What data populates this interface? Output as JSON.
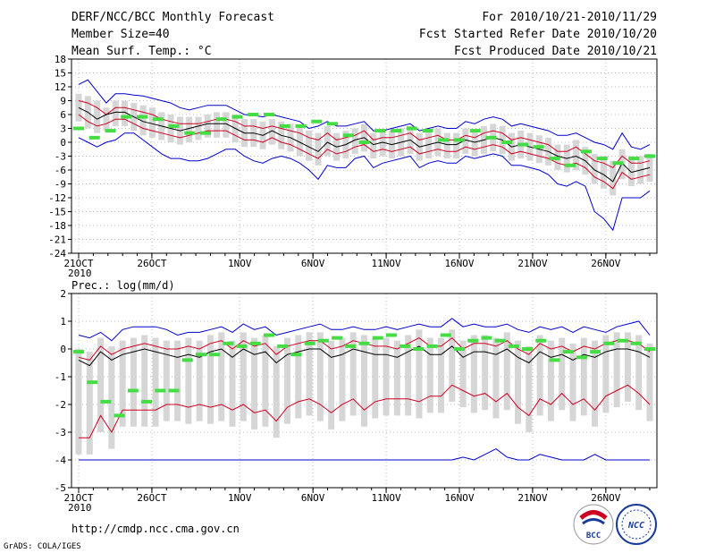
{
  "header": {
    "left": [
      "DERF/NCC/BCC Monthly Forecast",
      "Member Size=40",
      "Mean Surf. Temp.: °C"
    ],
    "right": [
      "For 2010/10/21-2010/11/29",
      "Fcst Started Refer Date 2010/10/20",
      "Fcst Produced Date 2010/10/21"
    ]
  },
  "footer": {
    "url": "http://cmdp.ncc.cma.gov.cn",
    "credit": "GrADS: COLA/IGES"
  },
  "logos": {
    "bcc_text": "BCC",
    "ncc_text": "NCC"
  },
  "colors": {
    "ensemble_mean": "#000000",
    "spread": "#cc0022",
    "extreme": "#0000cc",
    "observed": "#44dd44",
    "box": "#d6d6d6"
  },
  "chart_data": [
    {
      "type": "line",
      "title": "Mean Surf. Temp.: °C",
      "x_ticks": [
        "21OCT",
        "26OCT",
        "1NOV",
        "6NOV",
        "11NOV",
        "16NOV",
        "21NOV",
        "26NOV"
      ],
      "x_sub": "2010",
      "y_ticks": [
        "18",
        "15",
        "12",
        "9",
        "6",
        "3",
        "0",
        "-3",
        "-6",
        "-9",
        "-12",
        "-15",
        "-18",
        "-21",
        "-24"
      ],
      "ylim": [
        -24,
        18
      ],
      "days": 40,
      "series": [
        {
          "name": "max",
          "values": [
            12.5,
            13.5,
            11,
            8.5,
            10.5,
            10.5,
            10.2,
            10,
            9.5,
            9,
            8.5,
            7.5,
            7,
            7.5,
            8,
            8,
            8,
            7,
            6,
            5.8,
            5.5,
            6,
            5.5,
            5,
            4.5,
            3,
            3.5,
            4.5,
            3.5,
            3.5,
            4,
            4.5,
            2.5,
            2.5,
            3,
            3.5,
            4,
            2.5,
            3,
            3.5,
            3,
            3,
            4.5,
            4,
            5,
            5.5,
            5,
            3.5,
            4,
            3.5,
            3,
            2.5,
            1.5,
            1.5,
            2,
            1,
            0,
            -0.5,
            -1.5,
            2,
            -1,
            -1.5,
            -0.5
          ]
        },
        {
          "name": "upper",
          "values": [
            9,
            8.5,
            7.5,
            6,
            7.5,
            7.5,
            7,
            6.5,
            6,
            5,
            4.5,
            4,
            4,
            4,
            4.5,
            5,
            5,
            4.5,
            3.5,
            3.5,
            3,
            3.5,
            3,
            2.5,
            2,
            1,
            0.5,
            2,
            0.5,
            1,
            1.5,
            2.5,
            0.5,
            1,
            1,
            1.5,
            2,
            0.5,
            1,
            1.5,
            0.5,
            0.5,
            1.5,
            1,
            2,
            2.5,
            2,
            0.5,
            1,
            0.5,
            0,
            -0.5,
            -2,
            -2,
            -1,
            -2.5,
            -4,
            -4.5,
            -5.5,
            -3,
            -4.5,
            -4.5,
            -4
          ]
        },
        {
          "name": "mean",
          "values": [
            7.5,
            6.5,
            5,
            6,
            6.5,
            6.5,
            5.5,
            4.5,
            4,
            3.5,
            3,
            2.5,
            3,
            3.5,
            4,
            4,
            4,
            3,
            2,
            2,
            1.5,
            2.5,
            1.5,
            1,
            0,
            -1,
            -2,
            0,
            -1,
            -0.5,
            0.5,
            1,
            -0.5,
            0,
            -0.5,
            0,
            0.5,
            -1,
            -0.5,
            0,
            -0.5,
            -0.5,
            0.5,
            0,
            0.5,
            1,
            0.5,
            -1,
            -0.5,
            -1,
            -1.5,
            -2,
            -3,
            -3.5,
            -3,
            -4,
            -6,
            -7,
            -8.5,
            -4.5,
            -6.5,
            -6,
            -5.5
          ]
        },
        {
          "name": "lower",
          "values": [
            6,
            4.5,
            3.5,
            4,
            5,
            5,
            4,
            3,
            2.5,
            2,
            1.5,
            1,
            1.5,
            2,
            2.5,
            2.5,
            2.5,
            1.5,
            0.5,
            0.5,
            0,
            1,
            0,
            -0.5,
            -1.5,
            -2.5,
            -3.5,
            -1.5,
            -2.5,
            -2,
            -1,
            -0.5,
            -2,
            -1.5,
            -2,
            -1.5,
            -1,
            -2.5,
            -2,
            -1.5,
            -2,
            -2,
            -1,
            -1.5,
            -1,
            -0.5,
            -1,
            -2.5,
            -2,
            -2.5,
            -3,
            -3.5,
            -4.5,
            -5,
            -4.5,
            -5.5,
            -7.5,
            -8.5,
            -10,
            -6.5,
            -8,
            -7.5,
            -7
          ]
        },
        {
          "name": "min",
          "values": [
            1,
            0,
            -1,
            0,
            0.5,
            2,
            2,
            0.5,
            -1,
            -2.5,
            -3.5,
            -3.5,
            -4,
            -4,
            -3.5,
            -2.5,
            -1.5,
            -1.5,
            -3,
            -4,
            -4.5,
            -3.5,
            -3,
            -3.5,
            -4.5,
            -6,
            -8,
            -5,
            -5.5,
            -5.5,
            -3.5,
            -3,
            -5.5,
            -4.5,
            -4,
            -3.5,
            -3,
            -5.5,
            -4.5,
            -4,
            -4.5,
            -4.5,
            -3,
            -3.5,
            -3,
            -2.5,
            -3,
            -5,
            -5,
            -5.5,
            -6,
            -7,
            -9,
            -9.5,
            -8.5,
            -9.5,
            -15,
            -16.5,
            -19,
            -12,
            -12,
            -12,
            -10.5
          ]
        },
        {
          "name": "observed",
          "values": [
            3,
            1,
            2.5,
            5.5,
            5.5,
            5,
            3.5,
            2,
            2,
            5,
            5.5,
            6,
            6,
            3.5,
            3.5,
            4.5,
            4,
            1.5,
            0,
            2.5,
            2.5,
            3,
            2.5,
            0.5,
            0.5,
            2.5,
            1,
            0,
            -0.5,
            -1,
            -3.5,
            -5,
            -2,
            -3.5,
            -4.5,
            -3.5,
            -3
          ]
        }
      ]
    },
    {
      "type": "line",
      "title": "Prec.: log(mm/d)",
      "x_ticks": [
        "21OCT",
        "26OCT",
        "1NOV",
        "6NOV",
        "11NOV",
        "16NOV",
        "21NOV",
        "26NOV"
      ],
      "x_sub": "2010",
      "y_ticks": [
        "2",
        "1",
        "0",
        "-1",
        "-2",
        "-3",
        "-4",
        "-5"
      ],
      "ylim": [
        -5,
        2
      ],
      "days": 40,
      "series": [
        {
          "name": "max",
          "values": [
            0.5,
            0.4,
            0.6,
            0.3,
            0.7,
            0.8,
            0.8,
            0.8,
            0.7,
            0.5,
            0.6,
            0.6,
            0.7,
            0.8,
            0.6,
            0.9,
            0.7,
            0.8,
            0.5,
            0.6,
            0.7,
            0.8,
            0.9,
            0.7,
            0.7,
            0.8,
            0.7,
            0.7,
            0.8,
            0.7,
            0.8,
            0.9,
            0.8,
            0.8,
            1.1,
            0.8,
            0.9,
            0.8,
            0.8,
            0.9,
            0.7,
            0.6,
            0.8,
            0.7,
            0.8,
            0.6,
            0.8,
            0.7,
            0.6,
            0.8,
            0.9,
            1,
            0.5
          ]
        },
        {
          "name": "upper",
          "values": [
            -0.3,
            -0.4,
            0.1,
            -0.2,
            0,
            0.1,
            0.2,
            0.1,
            0,
            0,
            0.1,
            0,
            0.2,
            0.3,
            0,
            0.3,
            0.1,
            0.2,
            -0.2,
            0.1,
            0.2,
            0.3,
            0.3,
            0,
            0.1,
            0.3,
            0.2,
            0.1,
            0.1,
            0,
            0.2,
            0.4,
            0.1,
            0.1,
            0.4,
            0,
            0.2,
            0.2,
            0.1,
            0.3,
            0,
            -0.2,
            0.2,
            0,
            0.1,
            -0.1,
            0.1,
            0,
            0.2,
            0.3,
            0.3,
            0.2,
            -0.1
          ]
        },
        {
          "name": "mean",
          "values": [
            -0.4,
            -0.6,
            -0.1,
            -0.4,
            -0.2,
            -0.1,
            0,
            -0.1,
            -0.2,
            -0.3,
            -0.2,
            -0.3,
            -0.1,
            0,
            -0.3,
            0,
            -0.2,
            -0.1,
            -0.5,
            -0.2,
            -0.1,
            0,
            0,
            -0.3,
            -0.2,
            0,
            -0.1,
            -0.2,
            -0.2,
            -0.3,
            -0.1,
            0.1,
            -0.2,
            -0.2,
            0.1,
            -0.3,
            -0.1,
            -0.1,
            -0.2,
            0,
            -0.3,
            -0.5,
            -0.1,
            -0.3,
            -0.2,
            -0.4,
            -0.2,
            -0.3,
            -0.1,
            0,
            0,
            -0.1,
            -0.3
          ]
        },
        {
          "name": "lower",
          "values": [
            -3.2,
            -3.2,
            -2.4,
            -3,
            -2.2,
            -2.2,
            -2.2,
            -2.2,
            -2,
            -2,
            -2.1,
            -2,
            -2.1,
            -2,
            -2.2,
            -2,
            -2.3,
            -2.2,
            -2.6,
            -2.1,
            -1.9,
            -1.8,
            -2,
            -2.3,
            -2,
            -1.8,
            -2.2,
            -1.9,
            -1.8,
            -1.8,
            -1.8,
            -1.9,
            -1.7,
            -1.7,
            -1.3,
            -1.5,
            -1.7,
            -1.6,
            -1.9,
            -1.6,
            -2.1,
            -2.4,
            -1.8,
            -2,
            -1.6,
            -2,
            -1.8,
            -2.2,
            -1.7,
            -1.5,
            -1.3,
            -1.6,
            -2
          ]
        },
        {
          "name": "min",
          "values": [
            -4,
            -4,
            -4,
            -4,
            -4,
            -4,
            -4,
            -4,
            -4,
            -4,
            -4,
            -4,
            -4,
            -4,
            -4,
            -4,
            -4,
            -4,
            -4,
            -4,
            -4,
            -4,
            -4,
            -4,
            -4,
            -4,
            -4,
            -4,
            -4,
            -4,
            -4,
            -4,
            -4,
            -4,
            -4,
            -3.9,
            -4,
            -3.8,
            -3.6,
            -3.9,
            -4,
            -4,
            -3.8,
            -3.9,
            -4,
            -4,
            -4,
            -3.8,
            -4,
            -4,
            -4,
            -4,
            -4
          ]
        },
        {
          "name": "observed",
          "values": [
            -0.1,
            -1.2,
            -1.9,
            -2.4,
            -1.5,
            -1.9,
            -1.5,
            -1.5,
            -0.4,
            -0.2,
            -0.2,
            0.2,
            0.1,
            0.2,
            0.5,
            0.1,
            -0.2,
            0.2,
            0.3,
            0.4,
            0.1,
            0.2,
            0.4,
            0.5,
            0.1,
            0,
            0.1,
            0.5,
            0,
            0.3,
            0.4,
            0.3,
            0.1,
            0,
            0.3,
            -0.4,
            -0.1,
            -0.3,
            -0.1,
            0.2,
            0.3,
            0.2,
            0
          ]
        }
      ]
    }
  ]
}
